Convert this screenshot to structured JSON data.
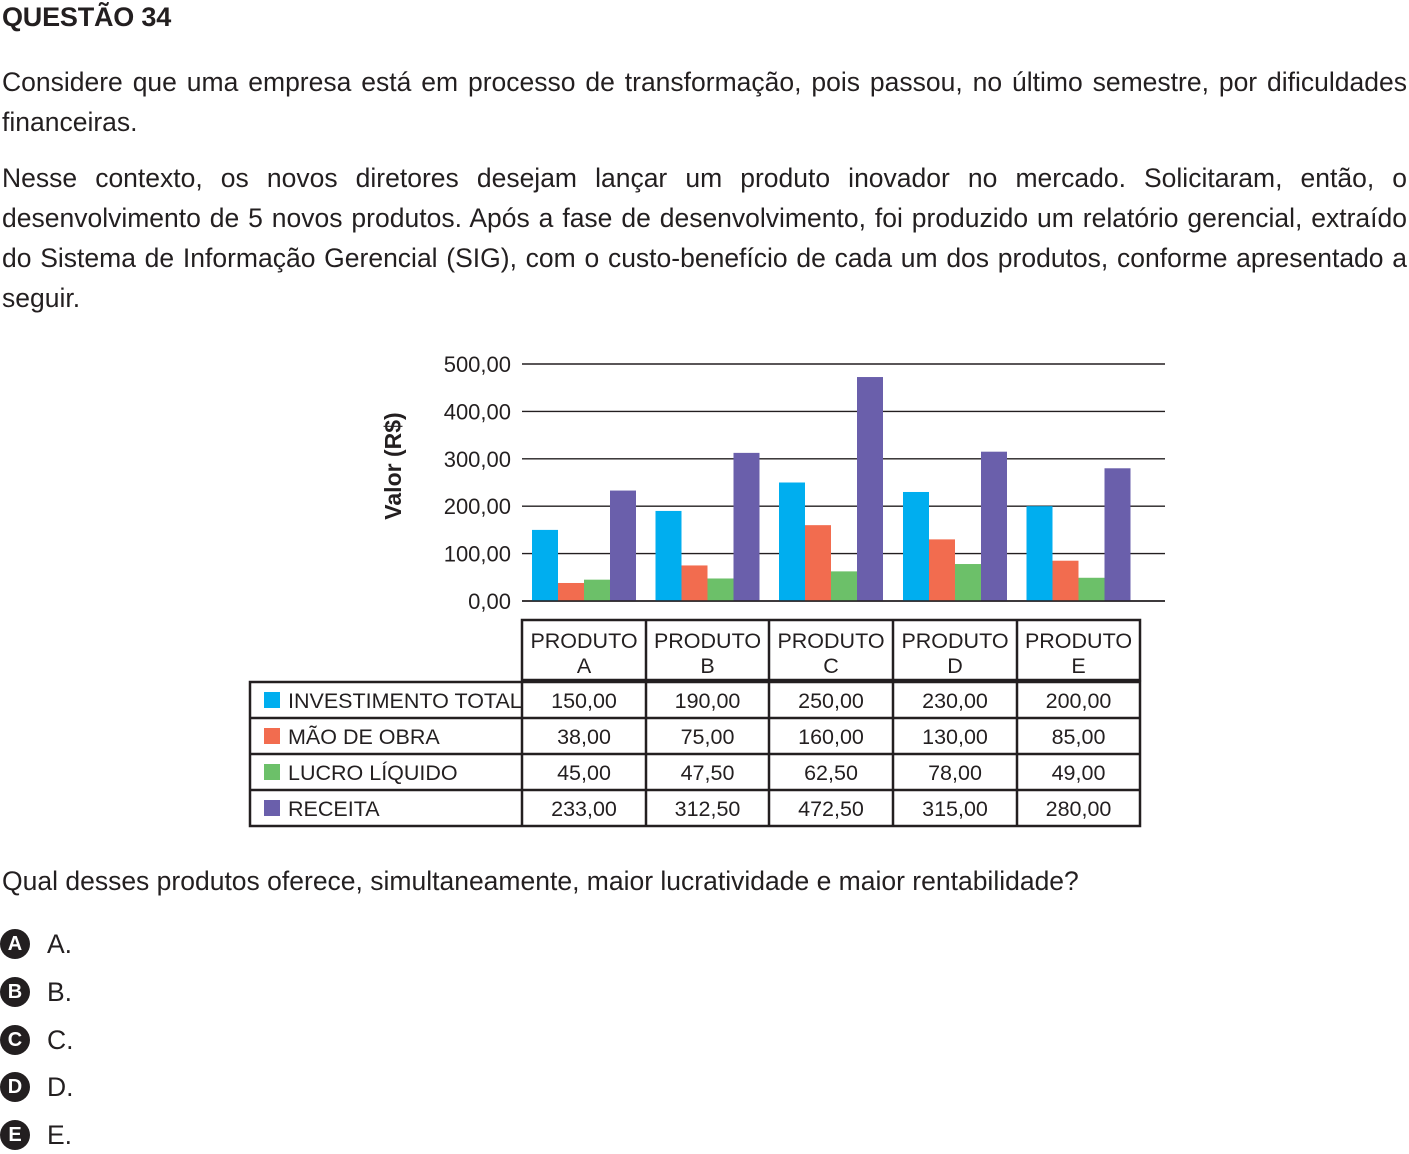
{
  "question_title": "QUESTÃO 34",
  "paragraphs": [
    "Considere que uma empresa está em processo de transformação, pois passou, no último semestre, por dificuldades financeiras.",
    "Nesse contexto, os novos diretores desejam lançar um produto inovador no mercado. Solicitaram, então, o desenvolvimento de 5 novos produtos. Após a fase de desenvolvimento, foi produzido um relatório gerencial, extraído do Sistema de Informação Gerencial (SIG), com o custo-benefício de cada um dos produtos, conforme apresentado a seguir."
  ],
  "question_text": "Qual desses produtos oferece, simultaneamente, maior lucratividade e maior rentabilidade?",
  "options": [
    {
      "letter": "A",
      "text": "A."
    },
    {
      "letter": "B",
      "text": "B."
    },
    {
      "letter": "C",
      "text": "C."
    },
    {
      "letter": "D",
      "text": "D."
    },
    {
      "letter": "E",
      "text": "E."
    }
  ],
  "chart_data": {
    "type": "bar",
    "ylabel": "Valor (R$)",
    "ylim": [
      0,
      500
    ],
    "yticks": [
      "0,00",
      "100,00",
      "200,00",
      "300,00",
      "400,00",
      "500,00"
    ],
    "grid": true,
    "categories": [
      [
        "PRODUTO",
        "A"
      ],
      [
        "PRODUTO",
        "B"
      ],
      [
        "PRODUTO",
        "C"
      ],
      [
        "PRODUTO",
        "D"
      ],
      [
        "PRODUTO",
        "E"
      ]
    ],
    "series": [
      {
        "name": "INVESTIMENTO TOTAL",
        "color": "#00aeef",
        "values": [
          150,
          190,
          250,
          230,
          200
        ],
        "labels": [
          "150,00",
          "190,00",
          "250,00",
          "230,00",
          "200,00"
        ]
      },
      {
        "name": "MÃO DE OBRA",
        "color": "#f26c4f",
        "values": [
          38,
          75,
          160,
          130,
          85
        ],
        "labels": [
          "38,00",
          "75,00",
          "160,00",
          "130,00",
          "85,00"
        ]
      },
      {
        "name": "LUCRO LÍQUIDO",
        "color": "#6cc069",
        "values": [
          45,
          47.5,
          62.5,
          78,
          49
        ],
        "labels": [
          "45,00",
          "47,50",
          "62,50",
          "78,00",
          "49,00"
        ]
      },
      {
        "name": "RECEITA",
        "color": "#6a5fab",
        "values": [
          233,
          312.5,
          472.5,
          315,
          280
        ],
        "labels": [
          "233,00",
          "312,50",
          "472,50",
          "315,00",
          "280,00"
        ]
      }
    ]
  }
}
